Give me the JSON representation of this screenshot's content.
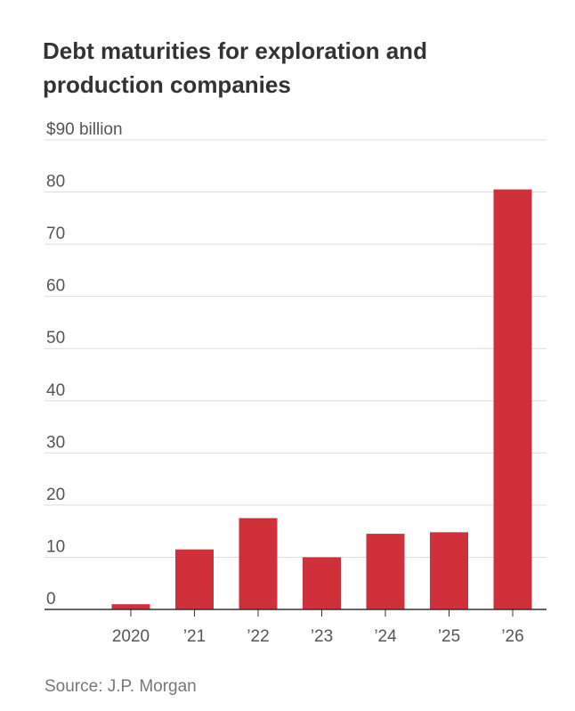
{
  "chart_data": {
    "type": "bar",
    "title": "Debt maturities for exploration and production companies",
    "y_unit_label": "$90 billion",
    "categories": [
      "2020",
      "’21",
      "’22",
      "’23",
      "’24",
      "’25",
      "’26"
    ],
    "values": [
      1,
      11.5,
      17.5,
      10,
      14.5,
      14.8,
      80.5
    ],
    "ylim": [
      0,
      90
    ],
    "yticks": [
      0,
      10,
      20,
      30,
      40,
      50,
      60,
      70,
      80
    ],
    "grid": true,
    "source": "Source: J.P. Morgan"
  },
  "colors": {
    "bar": "#cf303a",
    "grid": "#dddddd",
    "axis": "#333333"
  }
}
